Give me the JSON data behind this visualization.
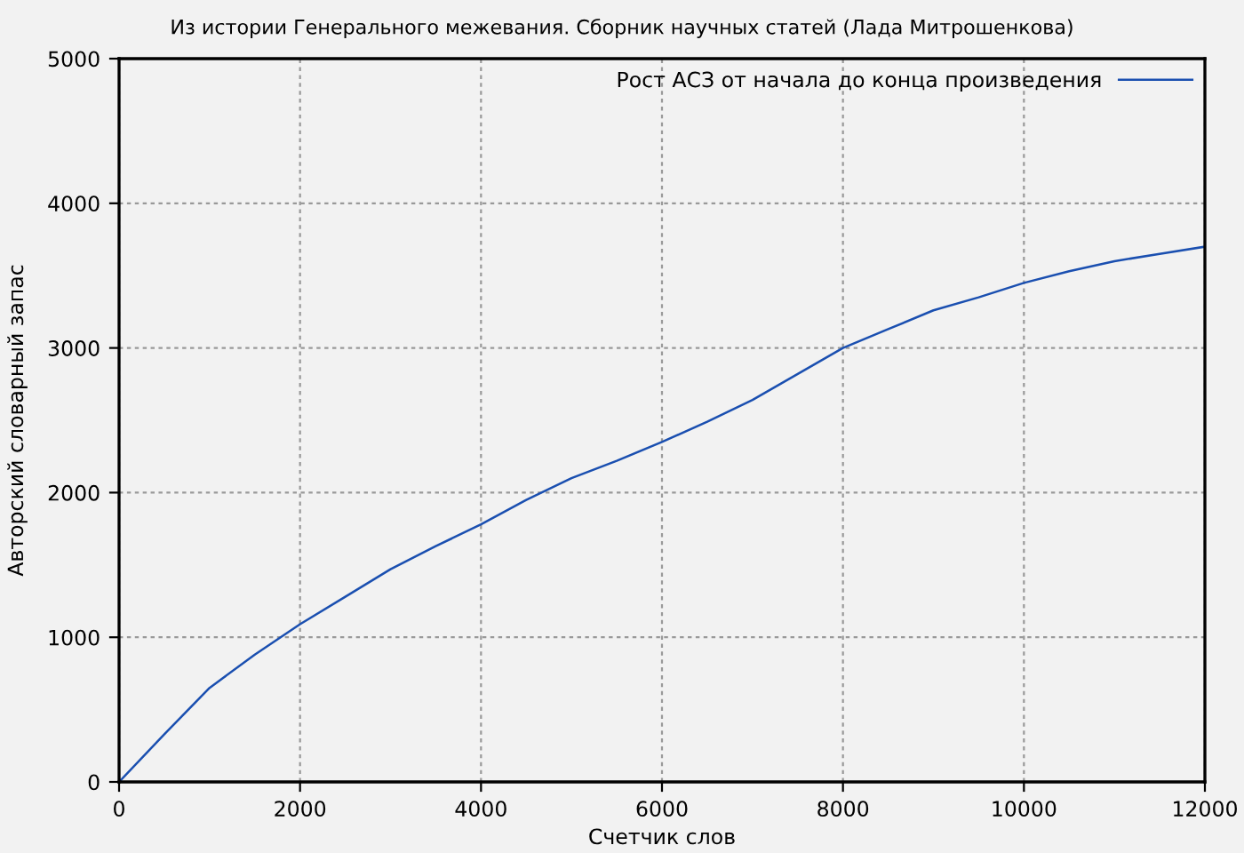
{
  "chart_data": {
    "type": "line",
    "title": "Из истории Генерального межевания. Сборник научных статей (Лада Митрошенкова)",
    "xlabel": "Счетчик слов",
    "ylabel": "Авторский словарный запас",
    "x": [
      0,
      500,
      1000,
      1500,
      2000,
      2500,
      3000,
      3500,
      4000,
      4500,
      5000,
      5500,
      6000,
      6500,
      7000,
      7500,
      8000,
      8500,
      9000,
      9500,
      10000,
      10500,
      11000,
      11500,
      12000
    ],
    "series": [
      {
        "name": "Рост АСЗ от начала до конца произведения",
        "color": "#1a4fb0",
        "values": [
          0,
          330,
          650,
          880,
          1090,
          1280,
          1470,
          1630,
          1780,
          1950,
          2100,
          2220,
          2350,
          2490,
          2640,
          2820,
          3000,
          3130,
          3260,
          3350,
          3450,
          3530,
          3600,
          3650,
          3700
        ]
      }
    ],
    "xlim": [
      0,
      12000
    ],
    "ylim": [
      0,
      5000
    ],
    "xticks": [
      0,
      2000,
      4000,
      6000,
      8000,
      10000,
      12000
    ],
    "yticks": [
      0,
      1000,
      2000,
      3000,
      4000,
      5000
    ],
    "grid": true,
    "legend": "top right",
    "line_style": "solid",
    "marker": "none"
  }
}
